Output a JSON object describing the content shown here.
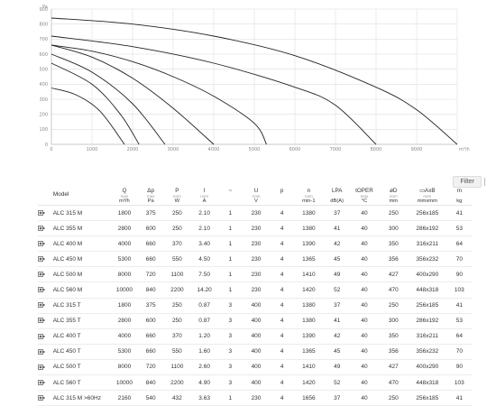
{
  "chart_data": {
    "type": "line",
    "title": "",
    "xlabel": "m³/h",
    "ylabel": "Pa",
    "xlim": [
      0,
      10000
    ],
    "ylim": [
      0,
      900
    ],
    "xticks": [
      "0",
      "1000",
      "2000",
      "3000",
      "4000",
      "5000",
      "6000",
      "7000",
      "8000",
      "9000"
    ],
    "yticks": [
      "0",
      "100",
      "200",
      "300",
      "400",
      "500",
      "600",
      "700",
      "800",
      "900"
    ],
    "grid": true,
    "series": [
      {
        "points": [
          [
            0,
            840
          ],
          [
            2000,
            800
          ],
          [
            4000,
            720
          ],
          [
            6000,
            590
          ],
          [
            8000,
            380
          ],
          [
            9000,
            230
          ],
          [
            10000,
            0
          ]
        ]
      },
      {
        "points": [
          [
            0,
            720
          ],
          [
            2000,
            650
          ],
          [
            4000,
            540
          ],
          [
            6000,
            380
          ],
          [
            7000,
            260
          ],
          [
            8000,
            0
          ]
        ]
      },
      {
        "points": [
          [
            0,
            660
          ],
          [
            1000,
            620
          ],
          [
            2000,
            550
          ],
          [
            3000,
            450
          ],
          [
            4000,
            320
          ],
          [
            5000,
            140
          ],
          [
            5300,
            0
          ]
        ]
      },
      {
        "points": [
          [
            0,
            660
          ],
          [
            1000,
            580
          ],
          [
            2000,
            440
          ],
          [
            3000,
            240
          ],
          [
            4000,
            0
          ]
        ]
      },
      {
        "points": [
          [
            0,
            600
          ],
          [
            1000,
            480
          ],
          [
            2000,
            270
          ],
          [
            2800,
            0
          ]
        ]
      },
      {
        "points": [
          [
            0,
            540
          ],
          [
            1000,
            400
          ],
          [
            1700,
            200
          ],
          [
            2160,
            0
          ]
        ]
      },
      {
        "points": [
          [
            0,
            375
          ],
          [
            600,
            330
          ],
          [
            1200,
            220
          ],
          [
            1800,
            0
          ]
        ]
      }
    ]
  },
  "chart_colors": {
    "line": "#222222",
    "grid": "#dedede",
    "axis": "#bbbbbb"
  },
  "filter": {
    "label": "Filter",
    "icon": "filter-separator"
  },
  "table": {
    "headers": [
      {
        "key": "icon",
        "sym": "",
        "sub": "",
        "unit": ""
      },
      {
        "key": "model",
        "sym": "Model",
        "sub": "",
        "unit": ""
      },
      {
        "key": "q",
        "sym": "Q",
        "sub": "max",
        "unit": "m³/h"
      },
      {
        "key": "dp",
        "sym": "Δp",
        "sub": "max",
        "unit": "Pa"
      },
      {
        "key": "p",
        "sym": "P",
        "sub": "nom",
        "unit": "W"
      },
      {
        "key": "i",
        "sym": "I",
        "sub": "nom",
        "unit": "A"
      },
      {
        "key": "phase",
        "sym": "~",
        "sub": "",
        "unit": ""
      },
      {
        "key": "u",
        "sym": "U",
        "sub": "nom",
        "unit": "V"
      },
      {
        "key": "poles",
        "sym": "p",
        "sub": "",
        "unit": ""
      },
      {
        "key": "n",
        "sym": "n",
        "sub": "nom",
        "unit": "min-1"
      },
      {
        "key": "lpa",
        "sym": "LPA",
        "sub": "",
        "unit": "dB(A)"
      },
      {
        "key": "toper",
        "sym": "tOPER",
        "sub": "max",
        "unit": "°C"
      },
      {
        "key": "od",
        "sym": "øD",
        "sub": "nom",
        "unit": "mm"
      },
      {
        "key": "axb",
        "sym": "▭AxB",
        "sub": "nom",
        "unit": "mmxmm"
      },
      {
        "key": "m",
        "sym": "m",
        "sub": "",
        "unit": "kg"
      }
    ],
    "rows": [
      [
        "ALC 315 M",
        "1800",
        "375",
        "250",
        "2.10",
        "1",
        "230",
        "4",
        "1380",
        "37",
        "40",
        "250",
        "256x185",
        "41"
      ],
      [
        "ALC 355 M",
        "2800",
        "600",
        "250",
        "2.10",
        "1",
        "230",
        "4",
        "1380",
        "41",
        "40",
        "300",
        "286x192",
        "53"
      ],
      [
        "ALC 400 M",
        "4000",
        "660",
        "370",
        "3.40",
        "1",
        "230",
        "4",
        "1390",
        "42",
        "40",
        "350",
        "316x211",
        "64"
      ],
      [
        "ALC 450 M",
        "5300",
        "660",
        "550",
        "4.50",
        "1",
        "230",
        "4",
        "1365",
        "45",
        "40",
        "356",
        "356x232",
        "70"
      ],
      [
        "ALC 500 M",
        "8000",
        "720",
        "1100",
        "7.50",
        "1",
        "230",
        "4",
        "1410",
        "49",
        "40",
        "427",
        "400x290",
        "90"
      ],
      [
        "ALC 560 M",
        "10000",
        "840",
        "2200",
        "14.20",
        "1",
        "230",
        "4",
        "1420",
        "52",
        "40",
        "470",
        "448x318",
        "103"
      ],
      [
        "ALC 315 T",
        "1800",
        "375",
        "250",
        "0.87",
        "3",
        "400",
        "4",
        "1380",
        "37",
        "40",
        "250",
        "256x185",
        "41"
      ],
      [
        "ALC 355 T",
        "2800",
        "600",
        "250",
        "0.87",
        "3",
        "400",
        "4",
        "1380",
        "41",
        "40",
        "300",
        "286x192",
        "53"
      ],
      [
        "ALC 400 T",
        "4000",
        "660",
        "370",
        "1.20",
        "3",
        "400",
        "4",
        "1390",
        "42",
        "40",
        "350",
        "316x211",
        "64"
      ],
      [
        "ALC 450 T",
        "5300",
        "660",
        "550",
        "1.60",
        "3",
        "400",
        "4",
        "1365",
        "45",
        "40",
        "356",
        "356x232",
        "70"
      ],
      [
        "ALC 500 T",
        "8000",
        "720",
        "1100",
        "2.60",
        "3",
        "400",
        "4",
        "1410",
        "49",
        "40",
        "427",
        "400x290",
        "90"
      ],
      [
        "ALC 560 T",
        "10000",
        "840",
        "2200",
        "4.90",
        "3",
        "400",
        "4",
        "1420",
        "52",
        "40",
        "470",
        "448x318",
        "103"
      ],
      [
        "ALC 315 M >60Hz",
        "2160",
        "540",
        "432",
        "3.63",
        "1",
        "230",
        "4",
        "1656",
        "37",
        "40",
        "250",
        "256x185",
        "41"
      ]
    ]
  }
}
